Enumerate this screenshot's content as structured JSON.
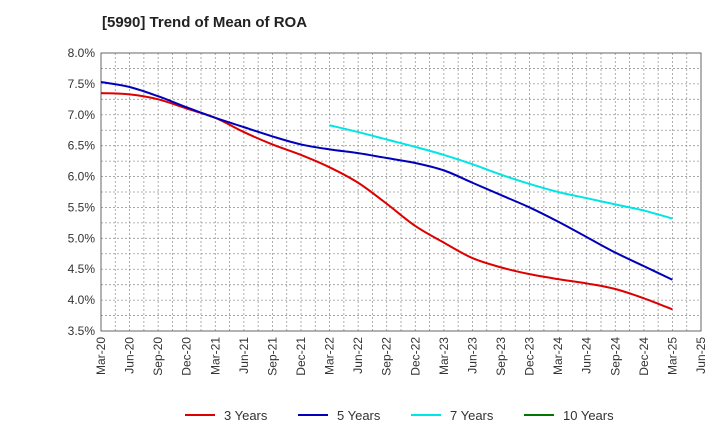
{
  "chart_data": {
    "type": "line",
    "title": "[5990]  Trend of Mean of ROA",
    "xlabel": "",
    "ylabel": "",
    "ylim": [
      3.5,
      8.0
    ],
    "yticks": [
      3.5,
      4.0,
      4.5,
      5.0,
      5.5,
      6.0,
      6.5,
      7.0,
      7.5,
      8.0
    ],
    "ytick_labels": [
      "3.5%",
      "4.0%",
      "4.5%",
      "5.0%",
      "5.5%",
      "6.0%",
      "6.5%",
      "7.0%",
      "7.5%",
      "8.0%"
    ],
    "categories": [
      "Mar-20",
      "Jun-20",
      "Sep-20",
      "Dec-20",
      "Mar-21",
      "Jun-21",
      "Sep-21",
      "Dec-21",
      "Mar-22",
      "Jun-22",
      "Sep-22",
      "Dec-22",
      "Mar-23",
      "Jun-23",
      "Sep-23",
      "Dec-23",
      "Mar-24",
      "Jun-24",
      "Sep-24",
      "Dec-24",
      "Mar-25",
      "Jun-25"
    ],
    "grid": true,
    "legend_position": "bottom",
    "series": [
      {
        "name": "3 Years",
        "color": "#dd0000",
        "values": [
          7.35,
          7.33,
          7.25,
          7.1,
          6.95,
          6.72,
          6.52,
          6.35,
          6.15,
          5.9,
          5.56,
          5.2,
          4.93,
          4.68,
          4.53,
          4.42,
          4.34,
          4.27,
          4.18,
          4.03,
          3.85,
          null
        ]
      },
      {
        "name": "5 Years",
        "color": "#0000bb",
        "values": [
          7.53,
          7.45,
          7.3,
          7.12,
          6.95,
          6.8,
          6.65,
          6.52,
          6.44,
          6.38,
          6.3,
          6.22,
          6.1,
          5.9,
          5.7,
          5.5,
          5.27,
          5.02,
          4.77,
          4.55,
          4.33,
          null
        ]
      },
      {
        "name": "7 Years",
        "color": "#00e5e5",
        "values": [
          null,
          null,
          null,
          null,
          null,
          null,
          null,
          null,
          6.83,
          6.72,
          6.6,
          6.48,
          6.35,
          6.2,
          6.03,
          5.88,
          5.75,
          5.65,
          5.55,
          5.45,
          5.32,
          null
        ]
      },
      {
        "name": "10 Years",
        "color": "#007700",
        "values": [
          null,
          null,
          null,
          null,
          null,
          null,
          null,
          null,
          null,
          null,
          null,
          null,
          null,
          null,
          null,
          null,
          null,
          null,
          null,
          null,
          null,
          null
        ]
      }
    ]
  }
}
